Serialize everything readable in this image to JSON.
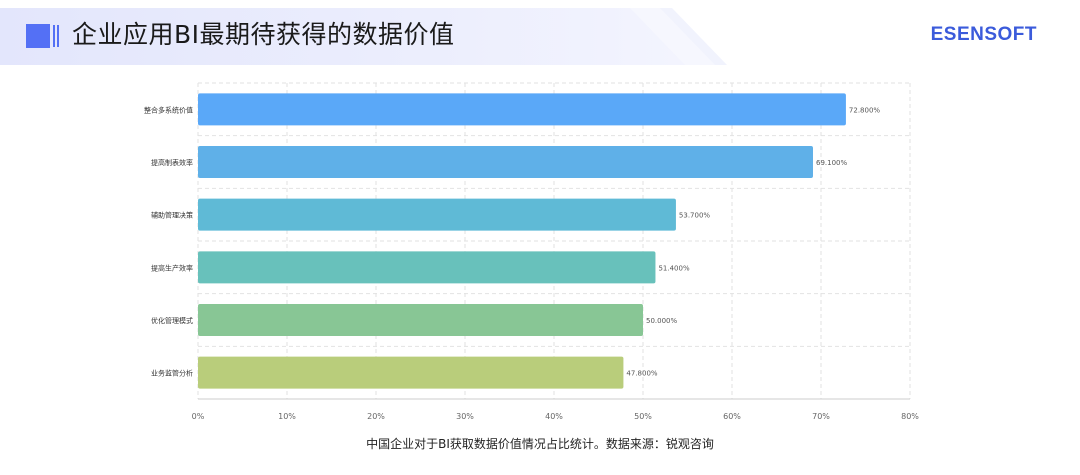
{
  "header": {
    "title": "企业应用BI最期待获得的数据价值",
    "brand": "ESENSOFT",
    "icon": "title-marker-icon"
  },
  "colors": {
    "accent": "#5470f5",
    "brand": "#3b5bdb",
    "header_band": "#e8eafd"
  },
  "chart_data": {
    "type": "bar",
    "orientation": "horizontal",
    "title": "",
    "xlabel": "",
    "ylabel": "",
    "categories": [
      "整合多系统价值",
      "提高制表效率",
      "辅助管理决策",
      "提高生产效率",
      "优化管理模式",
      "业务监管分析"
    ],
    "values": [
      72.8,
      69.1,
      53.7,
      51.4,
      50.0,
      47.8
    ],
    "value_labels": [
      "72.800%",
      "69.100%",
      "53.700%",
      "51.400%",
      "50.000%",
      "47.800%"
    ],
    "bar_colors": [
      "#5aa8f8",
      "#5fb0e8",
      "#5fbad6",
      "#68c1bb",
      "#88c695",
      "#b9cd7b"
    ],
    "xlim": [
      0,
      80
    ],
    "x_ticks": [
      0,
      10,
      20,
      30,
      40,
      50,
      60,
      70,
      80
    ],
    "x_tick_labels": [
      "0%",
      "10%",
      "20%",
      "30%",
      "40%",
      "50%",
      "60%",
      "70%",
      "80%"
    ],
    "grid": true,
    "legend": "none"
  },
  "caption": "中国企业对于BI获取数据价值情况占比统计。数据来源：锐观咨询"
}
